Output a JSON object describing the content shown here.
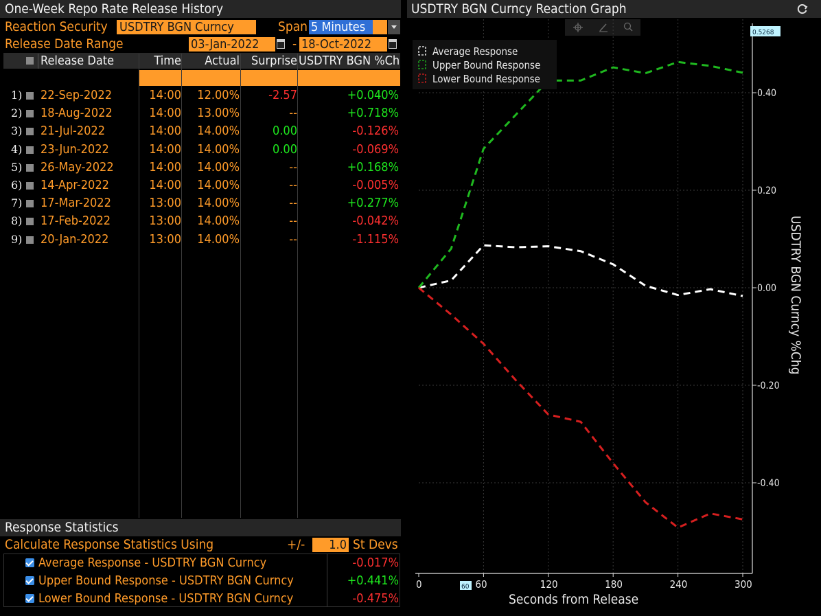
{
  "history": {
    "title": "One-Week Repo Rate Release History",
    "reaction_security_label": "Reaction Security",
    "reaction_security_value": "USDTRY BGN Curncy",
    "span_label": "Span",
    "span_value": "5 Minutes",
    "release_date_range_label": "Release Date Range",
    "date_from": "03-Jan-2022",
    "date_sep": "-",
    "date_to": "18-Oct-2022",
    "columns": [
      "Release Date",
      "Time",
      "Actual",
      "Surprise",
      "USDTRY BGN %Chg"
    ],
    "rows": [
      {
        "idx": "1)",
        "date": "22-Sep-2022",
        "time": "14:00",
        "actual": "12.00%",
        "surprise": "-2.57",
        "chg": "+0.040%",
        "surprise_color": "red",
        "chg_color": "green"
      },
      {
        "idx": "2)",
        "date": "18-Aug-2022",
        "time": "14:00",
        "actual": "13.00%",
        "surprise": "--",
        "chg": "+0.718%",
        "surprise_color": "orange",
        "chg_color": "green"
      },
      {
        "idx": "3)",
        "date": "21-Jul-2022",
        "time": "14:00",
        "actual": "14.00%",
        "surprise": "0.00",
        "chg": "-0.126%",
        "surprise_color": "green",
        "chg_color": "red"
      },
      {
        "idx": "4)",
        "date": "23-Jun-2022",
        "time": "14:00",
        "actual": "14.00%",
        "surprise": "0.00",
        "chg": "-0.069%",
        "surprise_color": "green",
        "chg_color": "red"
      },
      {
        "idx": "5)",
        "date": "26-May-2022",
        "time": "14:00",
        "actual": "14.00%",
        "surprise": "--",
        "chg": "+0.168%",
        "surprise_color": "orange",
        "chg_color": "green"
      },
      {
        "idx": "6)",
        "date": "14-Apr-2022",
        "time": "14:00",
        "actual": "14.00%",
        "surprise": "--",
        "chg": "-0.005%",
        "surprise_color": "orange",
        "chg_color": "red"
      },
      {
        "idx": "7)",
        "date": "17-Mar-2022",
        "time": "13:00",
        "actual": "14.00%",
        "surprise": "--",
        "chg": "+0.277%",
        "surprise_color": "orange",
        "chg_color": "green"
      },
      {
        "idx": "8)",
        "date": "17-Feb-2022",
        "time": "13:00",
        "actual": "14.00%",
        "surprise": "--",
        "chg": "-0.042%",
        "surprise_color": "orange",
        "chg_color": "red"
      },
      {
        "idx": "9)",
        "date": "20-Jan-2022",
        "time": "13:00",
        "actual": "14.00%",
        "surprise": "--",
        "chg": "-1.115%",
        "surprise_color": "orange",
        "chg_color": "red"
      }
    ]
  },
  "stats": {
    "title": "Response Statistics",
    "calc_label": "Calculate Response Statistics Using",
    "pm_label": "+/-",
    "st_devs_value": "1.0",
    "st_devs_label": "St Devs",
    "items": [
      {
        "label": "Average Response - USDTRY BGN Curncy",
        "value": "-0.017%",
        "color": "red"
      },
      {
        "label": "Upper Bound Response - USDTRY BGN Curncy",
        "value": "+0.441%",
        "color": "green"
      },
      {
        "label": "Lower Bound Response - USDTRY BGN Curncy",
        "value": "-0.475%",
        "color": "red"
      }
    ]
  },
  "graph": {
    "title": "USDTRY BGN Curncy Reaction Graph",
    "refresh_icon": "refresh-icon",
    "toolbar_icons": [
      "crosshair-icon",
      "pencil-icon",
      "zoom-icon"
    ],
    "last_value_label": "0.5268",
    "cursor_x_label": "60"
  },
  "colors": {
    "average": "#ffffff",
    "upper": "#1fb81f",
    "lower": "#d61f1f",
    "accent": "#ff9b29"
  },
  "chart_data": {
    "type": "line",
    "xlabel": "Seconds from Release",
    "ylabel": "USDTRY BGN Curncy %Chg",
    "xlim": [
      0,
      300
    ],
    "ylim": [
      -0.58,
      0.54
    ],
    "x_ticks": [
      0,
      60,
      120,
      180,
      240,
      300
    ],
    "y_ticks": [
      0.4,
      0.2,
      0.0,
      -0.2,
      -0.4
    ],
    "y_tick_labels": [
      "0.40",
      "0.20",
      "0.00",
      "-0.20",
      "-0.40"
    ],
    "grid": true,
    "legend_position": "top-left",
    "series": [
      {
        "name": "Average Response",
        "color": "#ffffff",
        "x": [
          0,
          30,
          60,
          90,
          120,
          150,
          180,
          210,
          240,
          270,
          300
        ],
        "y": [
          0.0,
          0.015,
          0.087,
          0.083,
          0.085,
          0.075,
          0.048,
          0.004,
          -0.015,
          -0.003,
          -0.017
        ]
      },
      {
        "name": "Upper Bound Response",
        "color": "#1fb81f",
        "x": [
          0,
          30,
          60,
          90,
          120,
          150,
          180,
          210,
          240,
          270,
          300
        ],
        "y": [
          0.0,
          0.08,
          0.285,
          0.355,
          0.425,
          0.425,
          0.452,
          0.44,
          0.463,
          0.455,
          0.441
        ]
      },
      {
        "name": "Lower Bound Response",
        "color": "#d61f1f",
        "x": [
          0,
          30,
          60,
          90,
          120,
          150,
          180,
          210,
          240,
          270,
          300
        ],
        "y": [
          0.0,
          -0.055,
          -0.115,
          -0.19,
          -0.26,
          -0.275,
          -0.36,
          -0.44,
          -0.492,
          -0.463,
          -0.475
        ]
      }
    ]
  }
}
